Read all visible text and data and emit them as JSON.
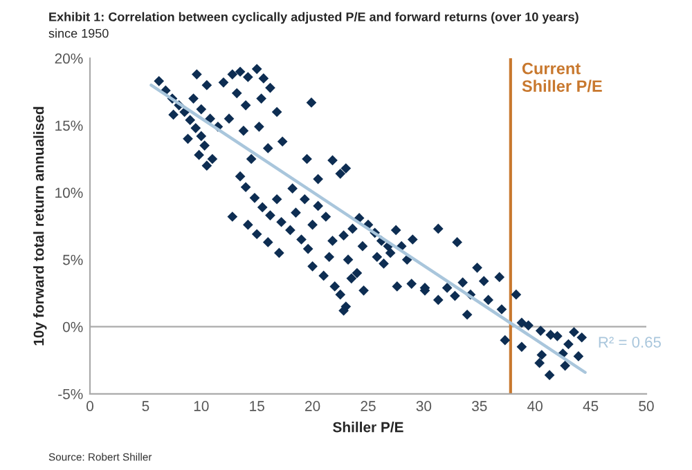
{
  "chart_data": {
    "type": "scatter",
    "title": "Exhibit 1: Correlation between cyclically adjusted P/E and forward returns (over 10 years)",
    "subtitle": "since 1950",
    "xlabel": "Shiller P/E",
    "ylabel": "10y forward total return annualised",
    "xlim": [
      0,
      50
    ],
    "xticks": [
      0,
      5,
      10,
      15,
      20,
      25,
      30,
      35,
      40,
      45,
      50
    ],
    "ylim": [
      -5,
      20
    ],
    "yticks": [
      {
        "value": -5,
        "label": "-5%"
      },
      {
        "value": 0,
        "label": "0%"
      },
      {
        "value": 5,
        "label": "5%"
      },
      {
        "value": 10,
        "label": "10%"
      },
      {
        "value": 15,
        "label": "15%"
      },
      {
        "value": 20,
        "label": "20%"
      }
    ],
    "grid": false,
    "legend": false,
    "series": [
      {
        "marker": "diamond",
        "color": "#0d2d52",
        "x": [
          6.2,
          6.8,
          7.4,
          8.0,
          8.5,
          9.0,
          9.5,
          10.0,
          10.3,
          7.5,
          8.8,
          9.8,
          10.5,
          11.0,
          9.3,
          10.0,
          10.8,
          11.5,
          9.6,
          10.5,
          12.0,
          12.8,
          13.5,
          14.2,
          15.0,
          15.6,
          16.2,
          13.2,
          14.0,
          15.4,
          16.8,
          12.5,
          13.8,
          15.2,
          17.3,
          16.0,
          14.5,
          19.9,
          19.5,
          21.8,
          22.5,
          23.0,
          20.5,
          13.5,
          14.0,
          14.8,
          15.5,
          16.2,
          16.8,
          17.2,
          18.0,
          18.5,
          19.0,
          19.6,
          20.0,
          15.0,
          16.0,
          17.0,
          18.2,
          19.3,
          20.5,
          21.2,
          12.8,
          14.2,
          20.0,
          21.0,
          21.5,
          22.0,
          22.5,
          23.0,
          22.8,
          23.5,
          24.0,
          24.6,
          21.8,
          22.8,
          23.6,
          24.2,
          25.0,
          25.6,
          26.2,
          26.8,
          24.5,
          23.2,
          25.8,
          27.5,
          28.0,
          28.5,
          29.0,
          27.0,
          31.3,
          33.0,
          27.6,
          28.9,
          30.1,
          26.4,
          34.8,
          36.8,
          30.1,
          32.1,
          33.5,
          35.4,
          38.3,
          31.3,
          32.8,
          34.2,
          35.8,
          33.9,
          37.0,
          37.3,
          38.8,
          39.4,
          40.5,
          41.4,
          42.0,
          43.5,
          44.2,
          38.8,
          40.6,
          40.4,
          41.3,
          42.7,
          43.0,
          43.9,
          42.5
        ],
        "values": [
          18.3,
          17.6,
          17.0,
          16.5,
          16.0,
          15.4,
          14.8,
          14.2,
          13.5,
          15.8,
          14.0,
          12.8,
          12.0,
          12.5,
          17.0,
          16.2,
          15.5,
          14.9,
          18.8,
          18.0,
          18.2,
          18.8,
          19.0,
          18.6,
          19.2,
          18.5,
          17.8,
          17.4,
          16.5,
          17.0,
          16.0,
          15.5,
          14.6,
          14.9,
          13.8,
          13.3,
          12.5,
          16.7,
          12.5,
          12.4,
          11.4,
          11.8,
          11.0,
          11.2,
          10.4,
          9.6,
          8.9,
          8.3,
          9.5,
          7.8,
          7.2,
          8.5,
          6.5,
          5.8,
          7.6,
          6.9,
          6.3,
          5.5,
          10.3,
          9.5,
          9.0,
          8.2,
          8.2,
          7.6,
          4.5,
          3.8,
          5.2,
          3.0,
          2.4,
          1.5,
          1.2,
          3.6,
          4.0,
          2.7,
          6.4,
          6.8,
          7.3,
          8.1,
          7.6,
          7.0,
          6.4,
          6.0,
          6.0,
          5.0,
          5.2,
          7.2,
          6.0,
          5.0,
          6.5,
          5.5,
          7.3,
          6.3,
          3.0,
          3.2,
          2.7,
          4.7,
          4.4,
          3.7,
          2.9,
          2.9,
          3.3,
          3.4,
          2.4,
          2.0,
          2.3,
          2.4,
          2.0,
          0.9,
          1.3,
          -1.0,
          0.3,
          0.1,
          -0.3,
          -0.6,
          -0.7,
          -0.4,
          -0.8,
          -1.5,
          -2.1,
          -2.7,
          -3.6,
          -2.9,
          -1.3,
          -2.2,
          -2.0
        ]
      },
      {
        "type": "line",
        "color": "#a9c6dc",
        "x": [
          5.5,
          44.5
        ],
        "values": [
          18.0,
          -3.4
        ]
      }
    ],
    "ref_lines": [
      {
        "axis": "y",
        "value": 0,
        "color": "#aaaaaa",
        "line_style": "solid"
      },
      {
        "axis": "x",
        "value": 37.8,
        "label": "Current\nShiller P/E",
        "color": "#c8782e",
        "line_style": "solid"
      }
    ],
    "annotations": [
      "R² = 0.65",
      "Source: Robert Shiller"
    ]
  }
}
